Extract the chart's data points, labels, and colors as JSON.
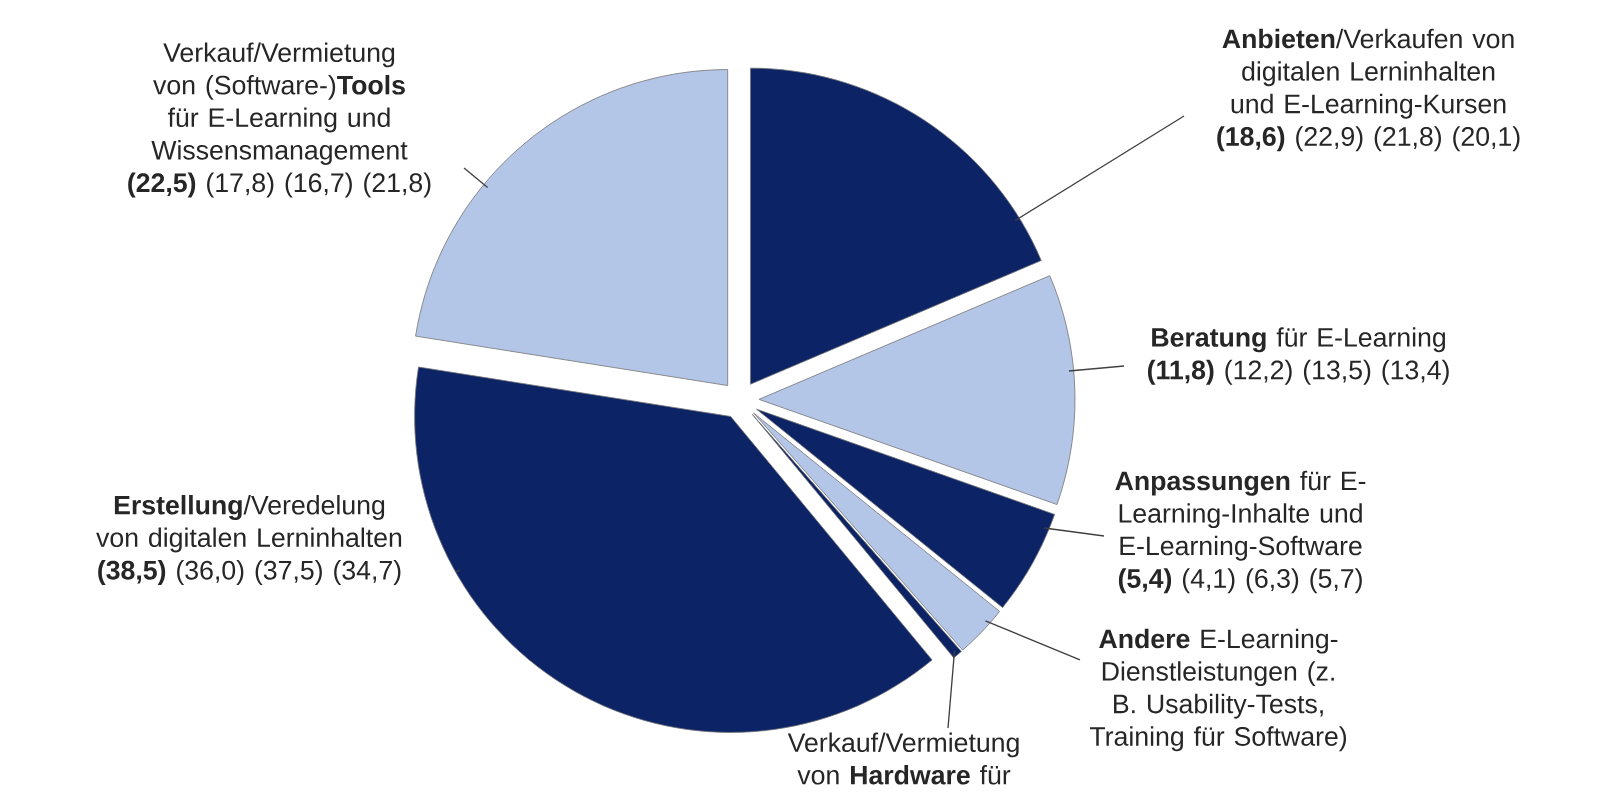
{
  "chart_data": {
    "type": "pie",
    "categories": [
      "**Anbieten**/Verkaufen von digitalen Lerninhalten und E-Learning-Kursen",
      "**Beratung** für E-Learning",
      "**Anpassungen** für E-Learning-Inhalte und E-Learning-Software",
      "**Andere** E-Learning-Dienstleistungen (z. B. Usability-Tests, Training für Software)",
      "Verkauf/Vermietung von **Hardware** für",
      "**Erstellung**/Veredelung von digitalen Lerninhalten",
      "Verkauf/Vermietung von (Software-)**Tools** für E-Learning und Wissensmanagement"
    ],
    "values": [
      18.6,
      11.8,
      5.4,
      2.7,
      0.5,
      38.5,
      22.5
    ],
    "value_labels": [
      "**(18,6)** (22,9) (21,8) (20,1)",
      "**(11,8)** (12,2) (13,5) (13,4)",
      "**(5,4)** (4,1) (6,3) (5,7)",
      null,
      null,
      "**(38,5)** (36,0) (37,5) (34,7)",
      "**(22,5)** (17,8) (16,7) (21,8)"
    ],
    "colors": [
      "#0c2366",
      "#b4c6e7",
      "#0c2366",
      "#b4c6e7",
      "#0c2366",
      "#0c2366",
      "#b4c6e7"
    ]
  }
}
